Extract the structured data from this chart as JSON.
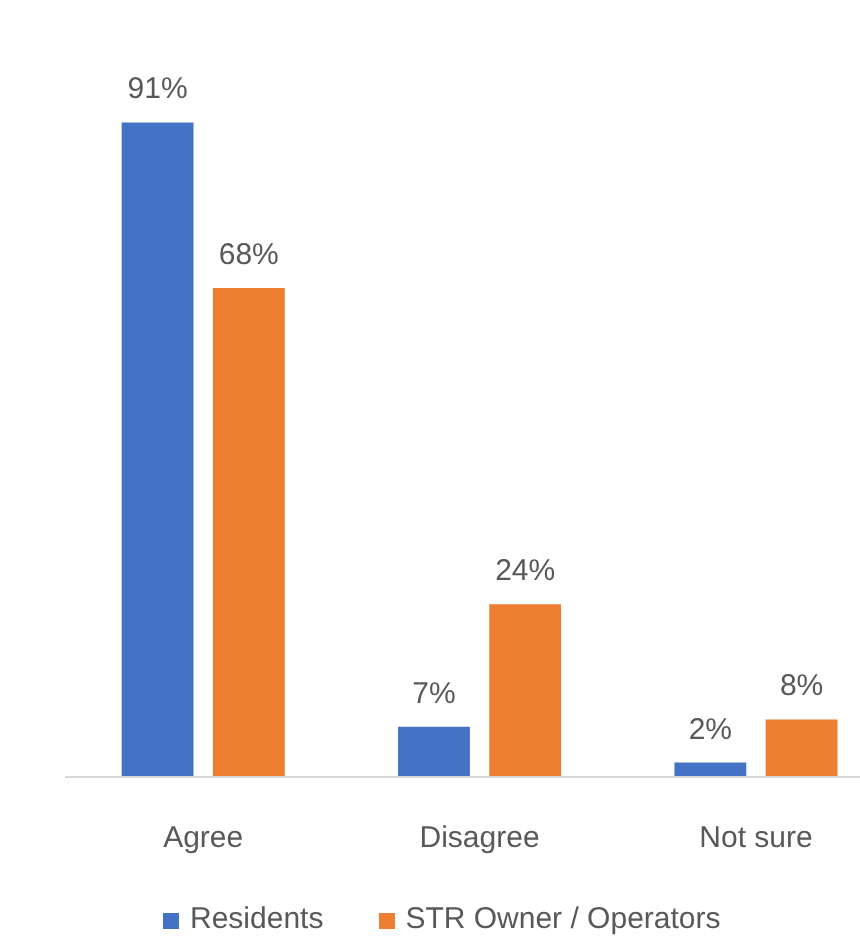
{
  "chart_data": {
    "type": "bar",
    "categories": [
      "Agree",
      "Disagree",
      "Not sure"
    ],
    "series": [
      {
        "name": "Residents",
        "color": "#4472c4",
        "values": [
          91,
          7,
          2
        ],
        "value_labels": [
          "91%",
          "7%",
          "2%"
        ]
      },
      {
        "name": "STR Owner / Operators",
        "color": "#ed7d31",
        "values": [
          68,
          24,
          8
        ],
        "value_labels": [
          "68%",
          "24%",
          "8%"
        ]
      }
    ],
    "legend": "bottom",
    "tick_labels": "x"
  }
}
